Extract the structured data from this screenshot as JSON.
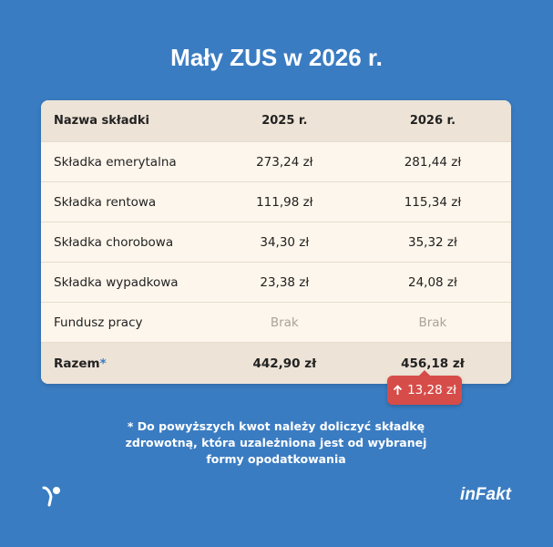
{
  "title": "Mały ZUS w 2026 r.",
  "table": {
    "header": [
      "Nazwa składki",
      "2025 r.",
      "2026 r."
    ],
    "rows": [
      [
        "Składka emerytalna",
        "273,24 zł",
        "281,44 zł"
      ],
      [
        "Składka rentowa",
        "111,98 zł",
        "115,34 zł"
      ],
      [
        "Składka chorobowa",
        "34,30 zł",
        "35,32 zł"
      ],
      [
        "Składka wypadkowa",
        "23,38 zł",
        "24,08 zł"
      ],
      [
        "Fundusz pracy",
        "Brak",
        "Brak"
      ]
    ],
    "total": {
      "label": "Razem",
      "marker": "*",
      "values": [
        "442,90 zł",
        "456,18 zł"
      ]
    }
  },
  "badge": "13,28 zł",
  "footnote": "* Do powyższych kwot należy doliczyć składkę zdrowotną, która uzależniona jest od wybranej formy opodatkowania",
  "logo": "inFakt"
}
